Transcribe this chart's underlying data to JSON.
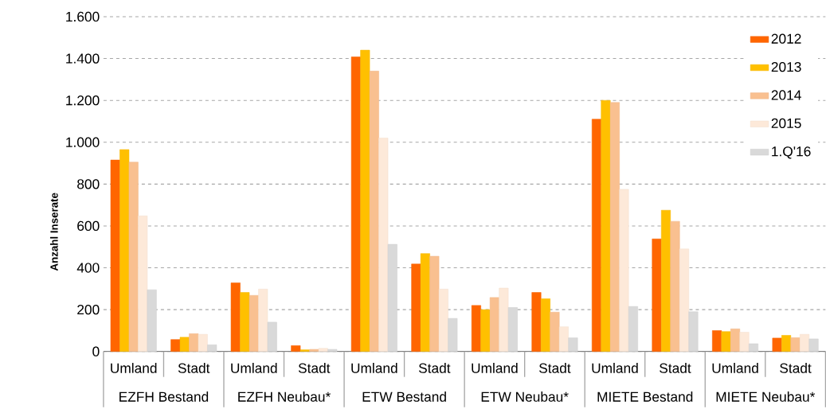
{
  "chart_data": {
    "type": "bar",
    "ylabel": "Anzahl Inserate",
    "categories": [
      "Umland",
      "Stadt",
      "Umland",
      "Stadt",
      "Umland",
      "Stadt",
      "Umland",
      "Stadt",
      "Umland",
      "Stadt",
      "Umland",
      "Stadt"
    ],
    "annotations": [
      "EZFH Bestand",
      "EZFH Neubau*",
      "ETW Bestand",
      "ETW Neubau*",
      "MIETE Bestand",
      "MIETE Neubau*"
    ],
    "series": [
      {
        "name": "2012",
        "color": "#ff6600",
        "values": [
          915,
          57,
          328,
          28,
          1408,
          418,
          220,
          282,
          1110,
          538,
          100,
          64
        ]
      },
      {
        "name": "2013",
        "color": "#ffc000",
        "values": [
          965,
          68,
          282,
          8,
          1440,
          468,
          200,
          252,
          1200,
          675,
          95,
          77
        ]
      },
      {
        "name": "2014",
        "color": "#f9c090",
        "values": [
          905,
          85,
          268,
          10,
          1340,
          455,
          258,
          188,
          1190,
          622,
          108,
          66
        ]
      },
      {
        "name": "2015",
        "color": "#fde9d9",
        "values": [
          648,
          82,
          298,
          15,
          1020,
          298,
          303,
          118,
          775,
          490,
          92,
          82
        ]
      },
      {
        "name": "1.Q'16",
        "color": "#d9d9d9",
        "values": [
          295,
          32,
          140,
          10,
          512,
          158,
          210,
          65,
          215,
          190,
          37,
          60
        ]
      }
    ],
    "ylim": [
      0,
      1600
    ],
    "yticks": [
      {
        "value": 0,
        "label": "0"
      },
      {
        "value": 200,
        "label": "200"
      },
      {
        "value": 400,
        "label": "400"
      },
      {
        "value": 600,
        "label": "600"
      },
      {
        "value": 800,
        "label": "800"
      },
      {
        "value": 1000,
        "label": "1.000"
      },
      {
        "value": 1200,
        "label": "1.200"
      },
      {
        "value": 1400,
        "label": "1.400"
      },
      {
        "value": 1600,
        "label": "1.600"
      }
    ],
    "grid": "y",
    "legend": "top right"
  }
}
